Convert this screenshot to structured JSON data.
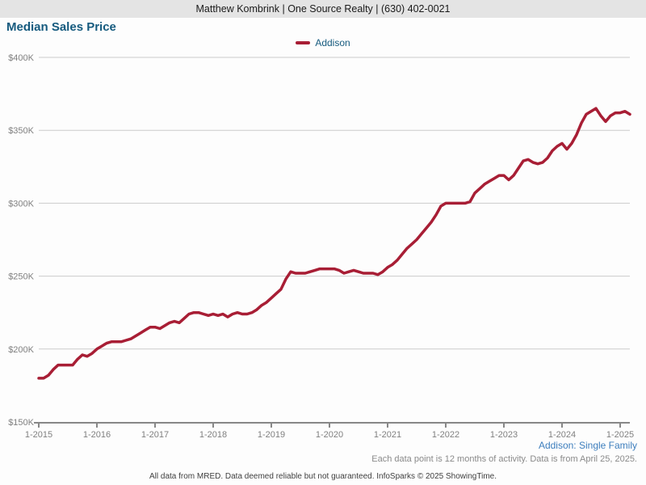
{
  "header": {
    "agent_info": "Matthew Kombrink | One Source Realty | (630) 402-0021"
  },
  "title": "Median Sales Price",
  "legend": {
    "label": "Addison",
    "color": "#a81e35"
  },
  "footnotes": {
    "series_note": "Addison: Single Family",
    "data_note": "Each data point is 12 months of activity. Data is from April 25, 2025.",
    "disclaimer": "All data from MRED. Data deemed reliable but not guaranteed. InfoSparks © 2025 ShowingTime."
  },
  "colors": {
    "line": "#a81e35",
    "title_blue": "#155a7e",
    "footnote_blue": "#3d7ebd",
    "gridline": "#cccccc",
    "axis_line": "#888888",
    "axis_text": "#808080",
    "header_bg": "#e4e4e4"
  },
  "chart_data": {
    "type": "line",
    "title": "Median Sales Price",
    "ylabel": "Median Sales Price ($)",
    "xlabel": "Month-Year",
    "ylim": [
      150000,
      400000
    ],
    "grid": "horizontal",
    "legend_position": "top-center",
    "y_ticks": [
      {
        "label": "$150K",
        "value": 150000
      },
      {
        "label": "$200K",
        "value": 200000
      },
      {
        "label": "$250K",
        "value": 250000
      },
      {
        "label": "$300K",
        "value": 300000
      },
      {
        "label": "$350K",
        "value": 350000
      },
      {
        "label": "$400K",
        "value": 400000
      }
    ],
    "x_tick_labels": [
      "1-2015",
      "1-2016",
      "1-2017",
      "1-2018",
      "1-2019",
      "1-2020",
      "1-2021",
      "1-2022",
      "1-2023",
      "1-2024",
      "1-2025"
    ],
    "x_tick_month_interval": 12,
    "series": [
      {
        "name": "Addison",
        "color": "#a81e35",
        "start": "2015-01",
        "end": "2025-03",
        "frequency": "monthly",
        "values": [
          180000,
          180000,
          182000,
          186000,
          189000,
          189000,
          189000,
          189000,
          193000,
          196000,
          195000,
          197000,
          200000,
          202000,
          204000,
          205000,
          205000,
          205000,
          206000,
          207000,
          209000,
          211000,
          213000,
          215000,
          215000,
          214000,
          216000,
          218000,
          219000,
          218000,
          221000,
          224000,
          225000,
          225000,
          224000,
          223000,
          224000,
          223000,
          224000,
          222000,
          224000,
          225000,
          224000,
          224000,
          225000,
          227000,
          230000,
          232000,
          235000,
          238000,
          241000,
          248000,
          253000,
          252000,
          252000,
          252000,
          253000,
          254000,
          255000,
          255000,
          255000,
          255000,
          254000,
          252000,
          253000,
          254000,
          253000,
          252000,
          252000,
          252000,
          251000,
          253000,
          256000,
          258000,
          261000,
          265000,
          269000,
          272000,
          275000,
          279000,
          283000,
          287000,
          292000,
          298000,
          300000,
          300000,
          300000,
          300000,
          300000,
          301000,
          307000,
          310000,
          313000,
          315000,
          317000,
          319000,
          319000,
          316000,
          319000,
          324000,
          329000,
          330000,
          328000,
          327000,
          328000,
          331000,
          336000,
          339000,
          341000,
          337000,
          341000,
          347000,
          355000,
          361000,
          363000,
          365000,
          360000,
          356000,
          360000,
          362000,
          362000,
          363000,
          361000
        ]
      }
    ]
  }
}
